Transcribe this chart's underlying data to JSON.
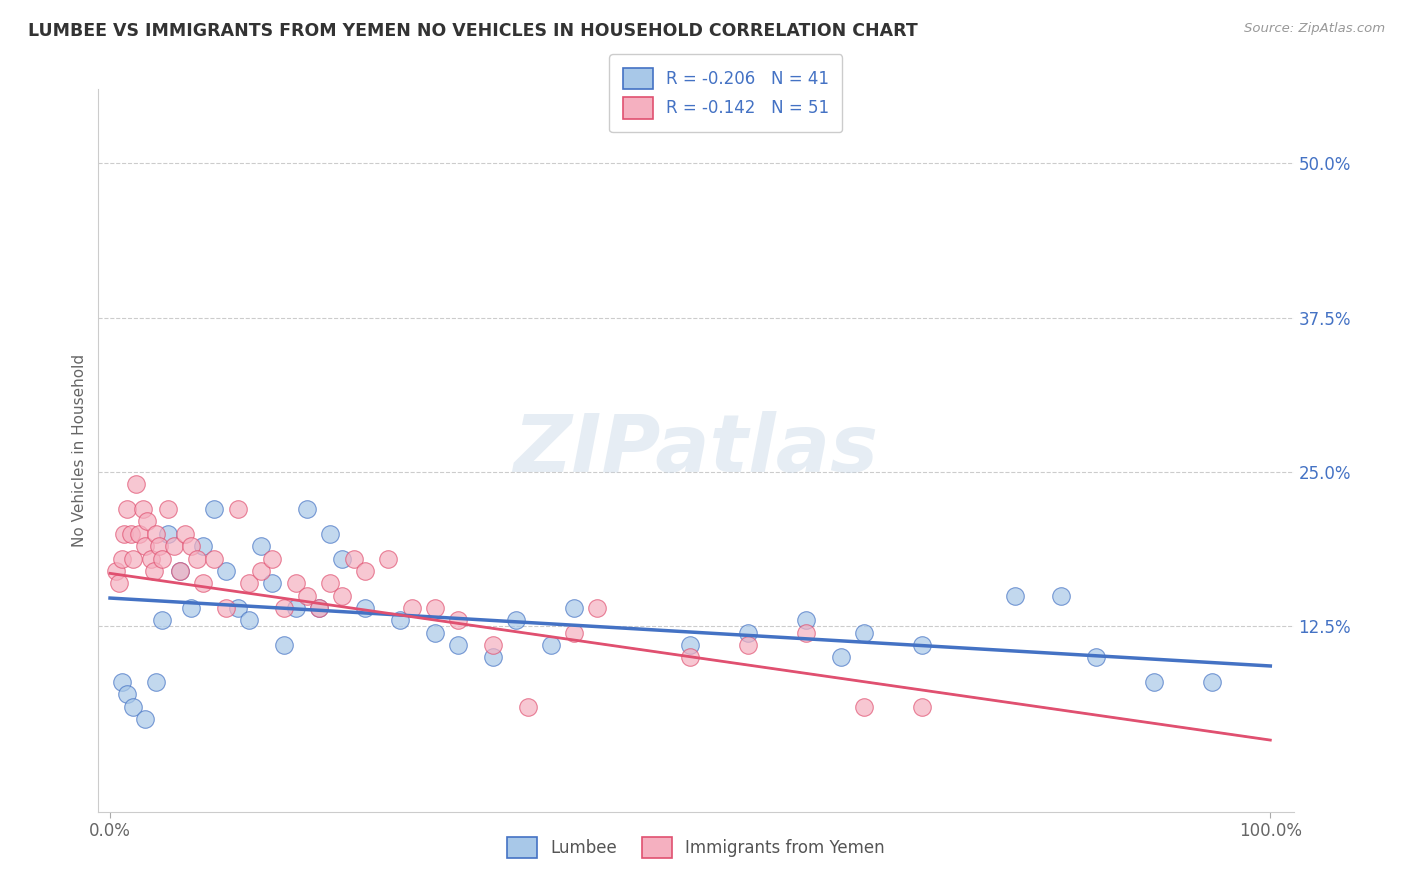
{
  "title": "LUMBEE VS IMMIGRANTS FROM YEMEN NO VEHICLES IN HOUSEHOLD CORRELATION CHART",
  "source": "Source: ZipAtlas.com",
  "ylabel": "No Vehicles in Household",
  "watermark": "ZIPatlas",
  "legend_r1": "-0.206",
  "legend_n1": "41",
  "legend_r2": "-0.142",
  "legend_n2": "51",
  "yticks": [
    "",
    "12.5%",
    "25.0%",
    "37.5%",
    "50.0%"
  ],
  "ytick_vals": [
    0.0,
    0.125,
    0.25,
    0.375,
    0.5
  ],
  "color_lumbee": "#a8c8e8",
  "color_yemen": "#f5b0c0",
  "color_lumbee_line": "#4472c4",
  "color_yemen_line": "#e05070",
  "lumbee_x": [
    1.0,
    1.5,
    2.0,
    3.0,
    4.0,
    4.5,
    5.0,
    6.0,
    7.0,
    8.0,
    9.0,
    10.0,
    11.0,
    12.0,
    13.0,
    14.0,
    15.0,
    16.0,
    17.0,
    18.0,
    19.0,
    20.0,
    22.0,
    25.0,
    28.0,
    30.0,
    33.0,
    35.0,
    38.0,
    40.0,
    50.0,
    55.0,
    60.0,
    63.0,
    65.0,
    70.0,
    78.0,
    82.0,
    85.0,
    90.0,
    95.0
  ],
  "lumbee_y": [
    0.08,
    0.07,
    0.06,
    0.05,
    0.08,
    0.13,
    0.2,
    0.17,
    0.14,
    0.19,
    0.22,
    0.17,
    0.14,
    0.13,
    0.19,
    0.16,
    0.11,
    0.14,
    0.22,
    0.14,
    0.2,
    0.18,
    0.14,
    0.13,
    0.12,
    0.11,
    0.1,
    0.13,
    0.11,
    0.14,
    0.11,
    0.12,
    0.13,
    0.1,
    0.12,
    0.11,
    0.15,
    0.15,
    0.1,
    0.08,
    0.08
  ],
  "yemen_x": [
    0.5,
    0.8,
    1.0,
    1.2,
    1.5,
    1.8,
    2.0,
    2.2,
    2.5,
    2.8,
    3.0,
    3.2,
    3.5,
    3.8,
    4.0,
    4.2,
    4.5,
    5.0,
    5.5,
    6.0,
    6.5,
    7.0,
    7.5,
    8.0,
    9.0,
    10.0,
    11.0,
    12.0,
    13.0,
    14.0,
    15.0,
    16.0,
    17.0,
    18.0,
    19.0,
    20.0,
    21.0,
    22.0,
    24.0,
    26.0,
    28.0,
    30.0,
    33.0,
    36.0,
    40.0,
    42.0,
    50.0,
    55.0,
    60.0,
    65.0,
    70.0
  ],
  "yemen_y": [
    0.17,
    0.16,
    0.18,
    0.2,
    0.22,
    0.2,
    0.18,
    0.24,
    0.2,
    0.22,
    0.19,
    0.21,
    0.18,
    0.17,
    0.2,
    0.19,
    0.18,
    0.22,
    0.19,
    0.17,
    0.2,
    0.19,
    0.18,
    0.16,
    0.18,
    0.14,
    0.22,
    0.16,
    0.17,
    0.18,
    0.14,
    0.16,
    0.15,
    0.14,
    0.16,
    0.15,
    0.18,
    0.17,
    0.18,
    0.14,
    0.14,
    0.13,
    0.11,
    0.06,
    0.12,
    0.14,
    0.1,
    0.11,
    0.12,
    0.06,
    0.06
  ],
  "xlim": [
    -1,
    102
  ],
  "ylim": [
    -0.025,
    0.56
  ],
  "background_color": "#ffffff"
}
